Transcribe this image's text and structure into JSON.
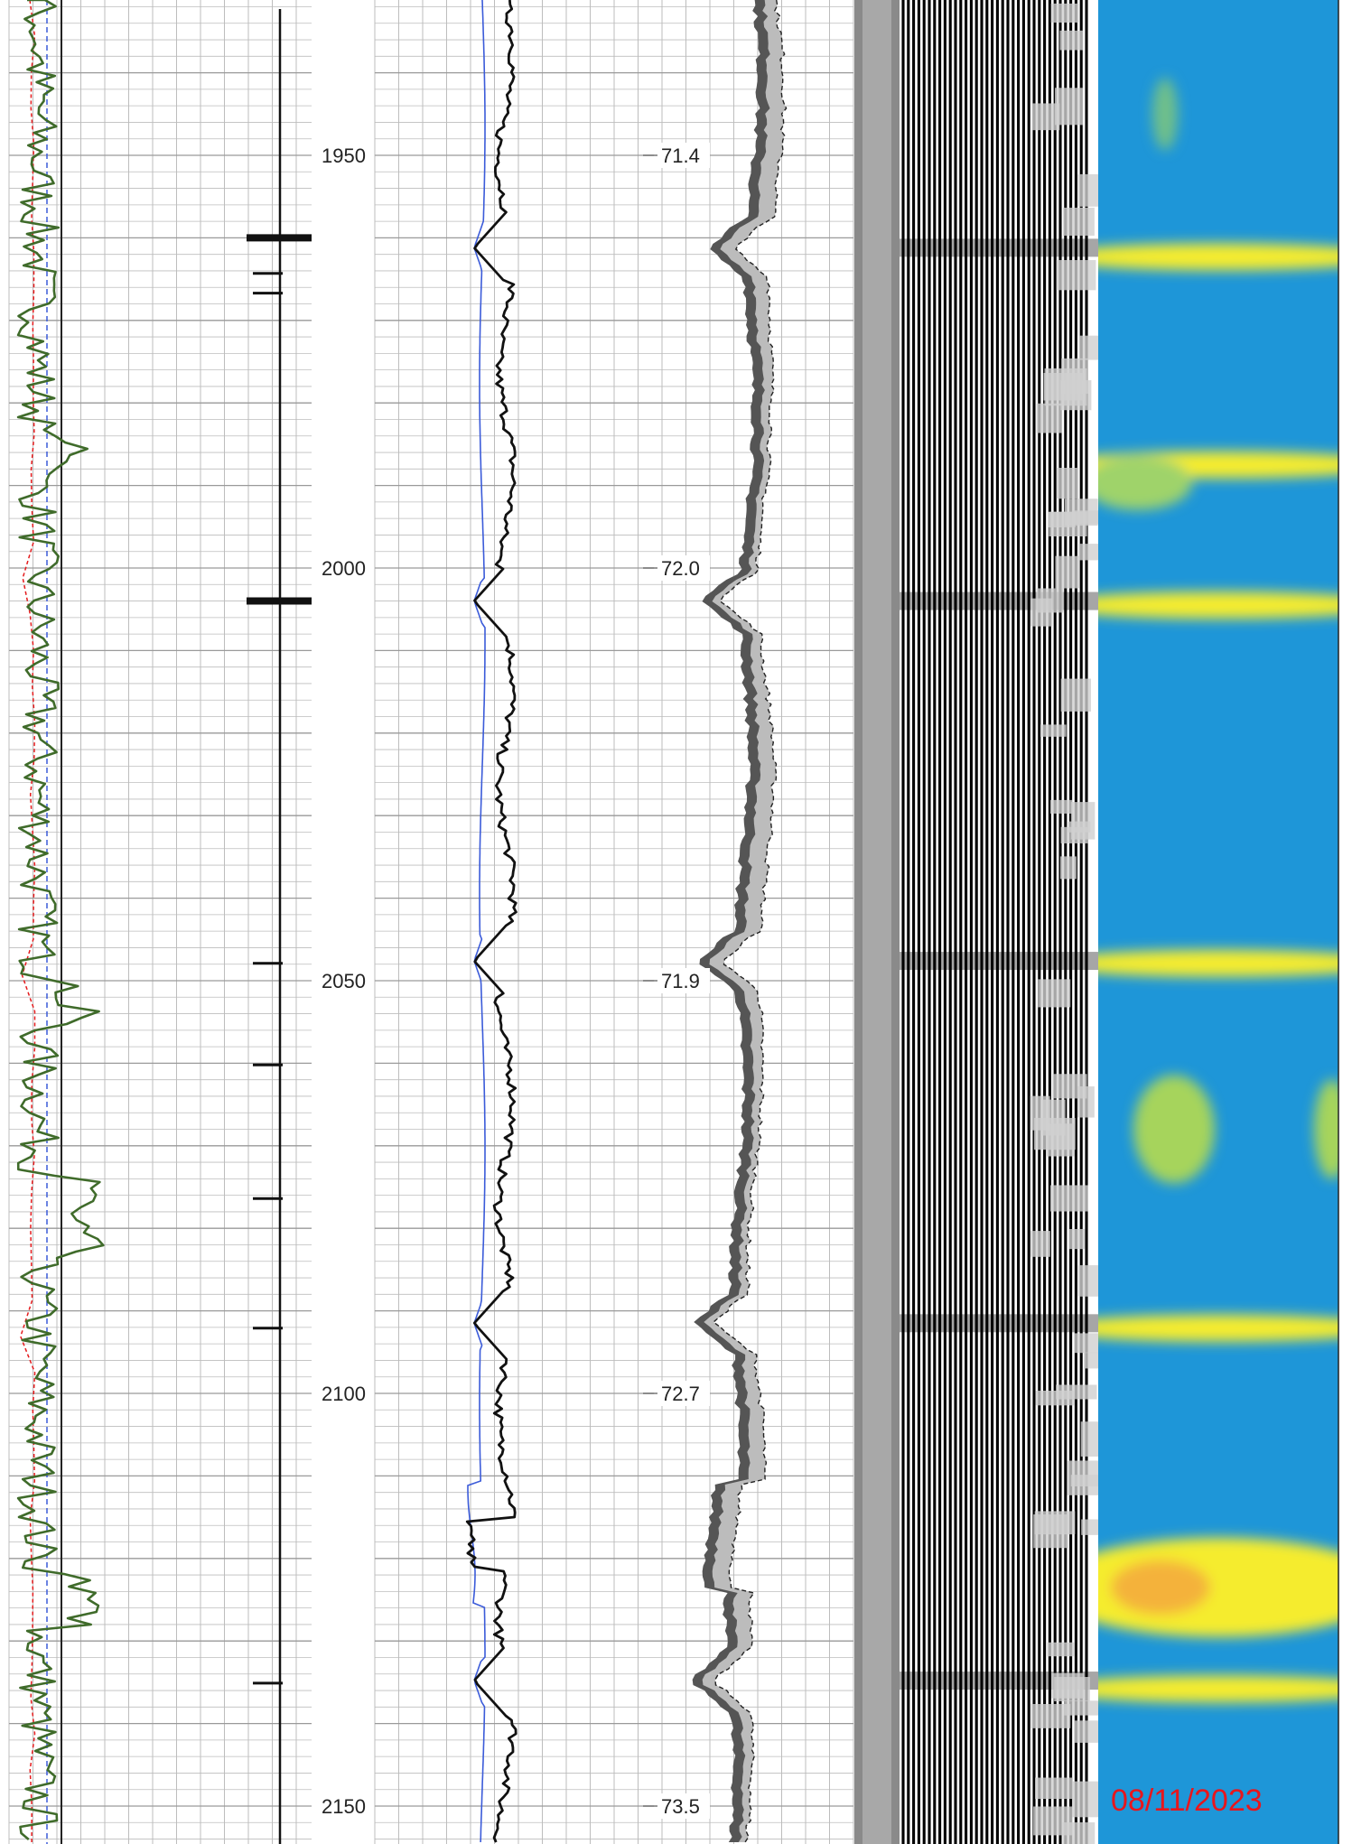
{
  "chart_data": {
    "type": "line",
    "depth_labels": [
      "1950",
      "2000",
      "2050",
      "2100",
      "2150"
    ],
    "depth_values": [
      1950,
      2000,
      2050,
      2100,
      2150
    ],
    "ylim": [
      1932,
      2155
    ],
    "annotation_labels": [
      "71.4",
      "72.0",
      "71.9",
      "72.7",
      "73.5"
    ],
    "date_stamp": "08/11/2023",
    "tracks": [
      {
        "name": "",
        "curves": [
          "green",
          "red-dashed",
          "blue-dashed"
        ]
      },
      {
        "name": "",
        "curves": [
          "ticks"
        ]
      },
      {
        "name": "",
        "curves": [
          "black",
          "blue"
        ]
      },
      {
        "name": "",
        "curves": [
          "shaded-band"
        ]
      },
      {
        "name": "",
        "curves": [
          "variable-density"
        ]
      },
      {
        "name": "",
        "curves": [
          "amplitude-map"
        ]
      }
    ],
    "collar_ticks": [
      {
        "depth": 1960.0,
        "thick": true
      },
      {
        "depth": 1964.3,
        "thick": false
      },
      {
        "depth": 1966.7,
        "thick": false
      },
      {
        "depth": 2004.0,
        "thick": true
      },
      {
        "depth": 2047.9,
        "thick": false
      },
      {
        "depth": 2060.2,
        "thick": false
      },
      {
        "depth": 2076.4,
        "thick": false
      },
      {
        "depth": 2092.1,
        "thick": false
      },
      {
        "depth": 2135.1,
        "thick": false
      }
    ],
    "collar_depths": [
      1961.2,
      2004.0,
      2047.6,
      2091.5,
      2134.8
    ],
    "bright_bands": [
      1962.3,
      1987.5,
      2004.5,
      2047.9,
      2092.1,
      2123.5,
      2135.8
    ],
    "colors": {
      "grid": "#bdbdbd",
      "green": "#3f6b2a",
      "red": "#e41a1c",
      "blue": "#3b5bd9",
      "black": "#111111",
      "band_dark": "#555555",
      "band_light": "#bcbcbc",
      "map_blue": "#1e96d8",
      "map_yellow": "#f5ec2e",
      "date": "#e8161c"
    }
  }
}
